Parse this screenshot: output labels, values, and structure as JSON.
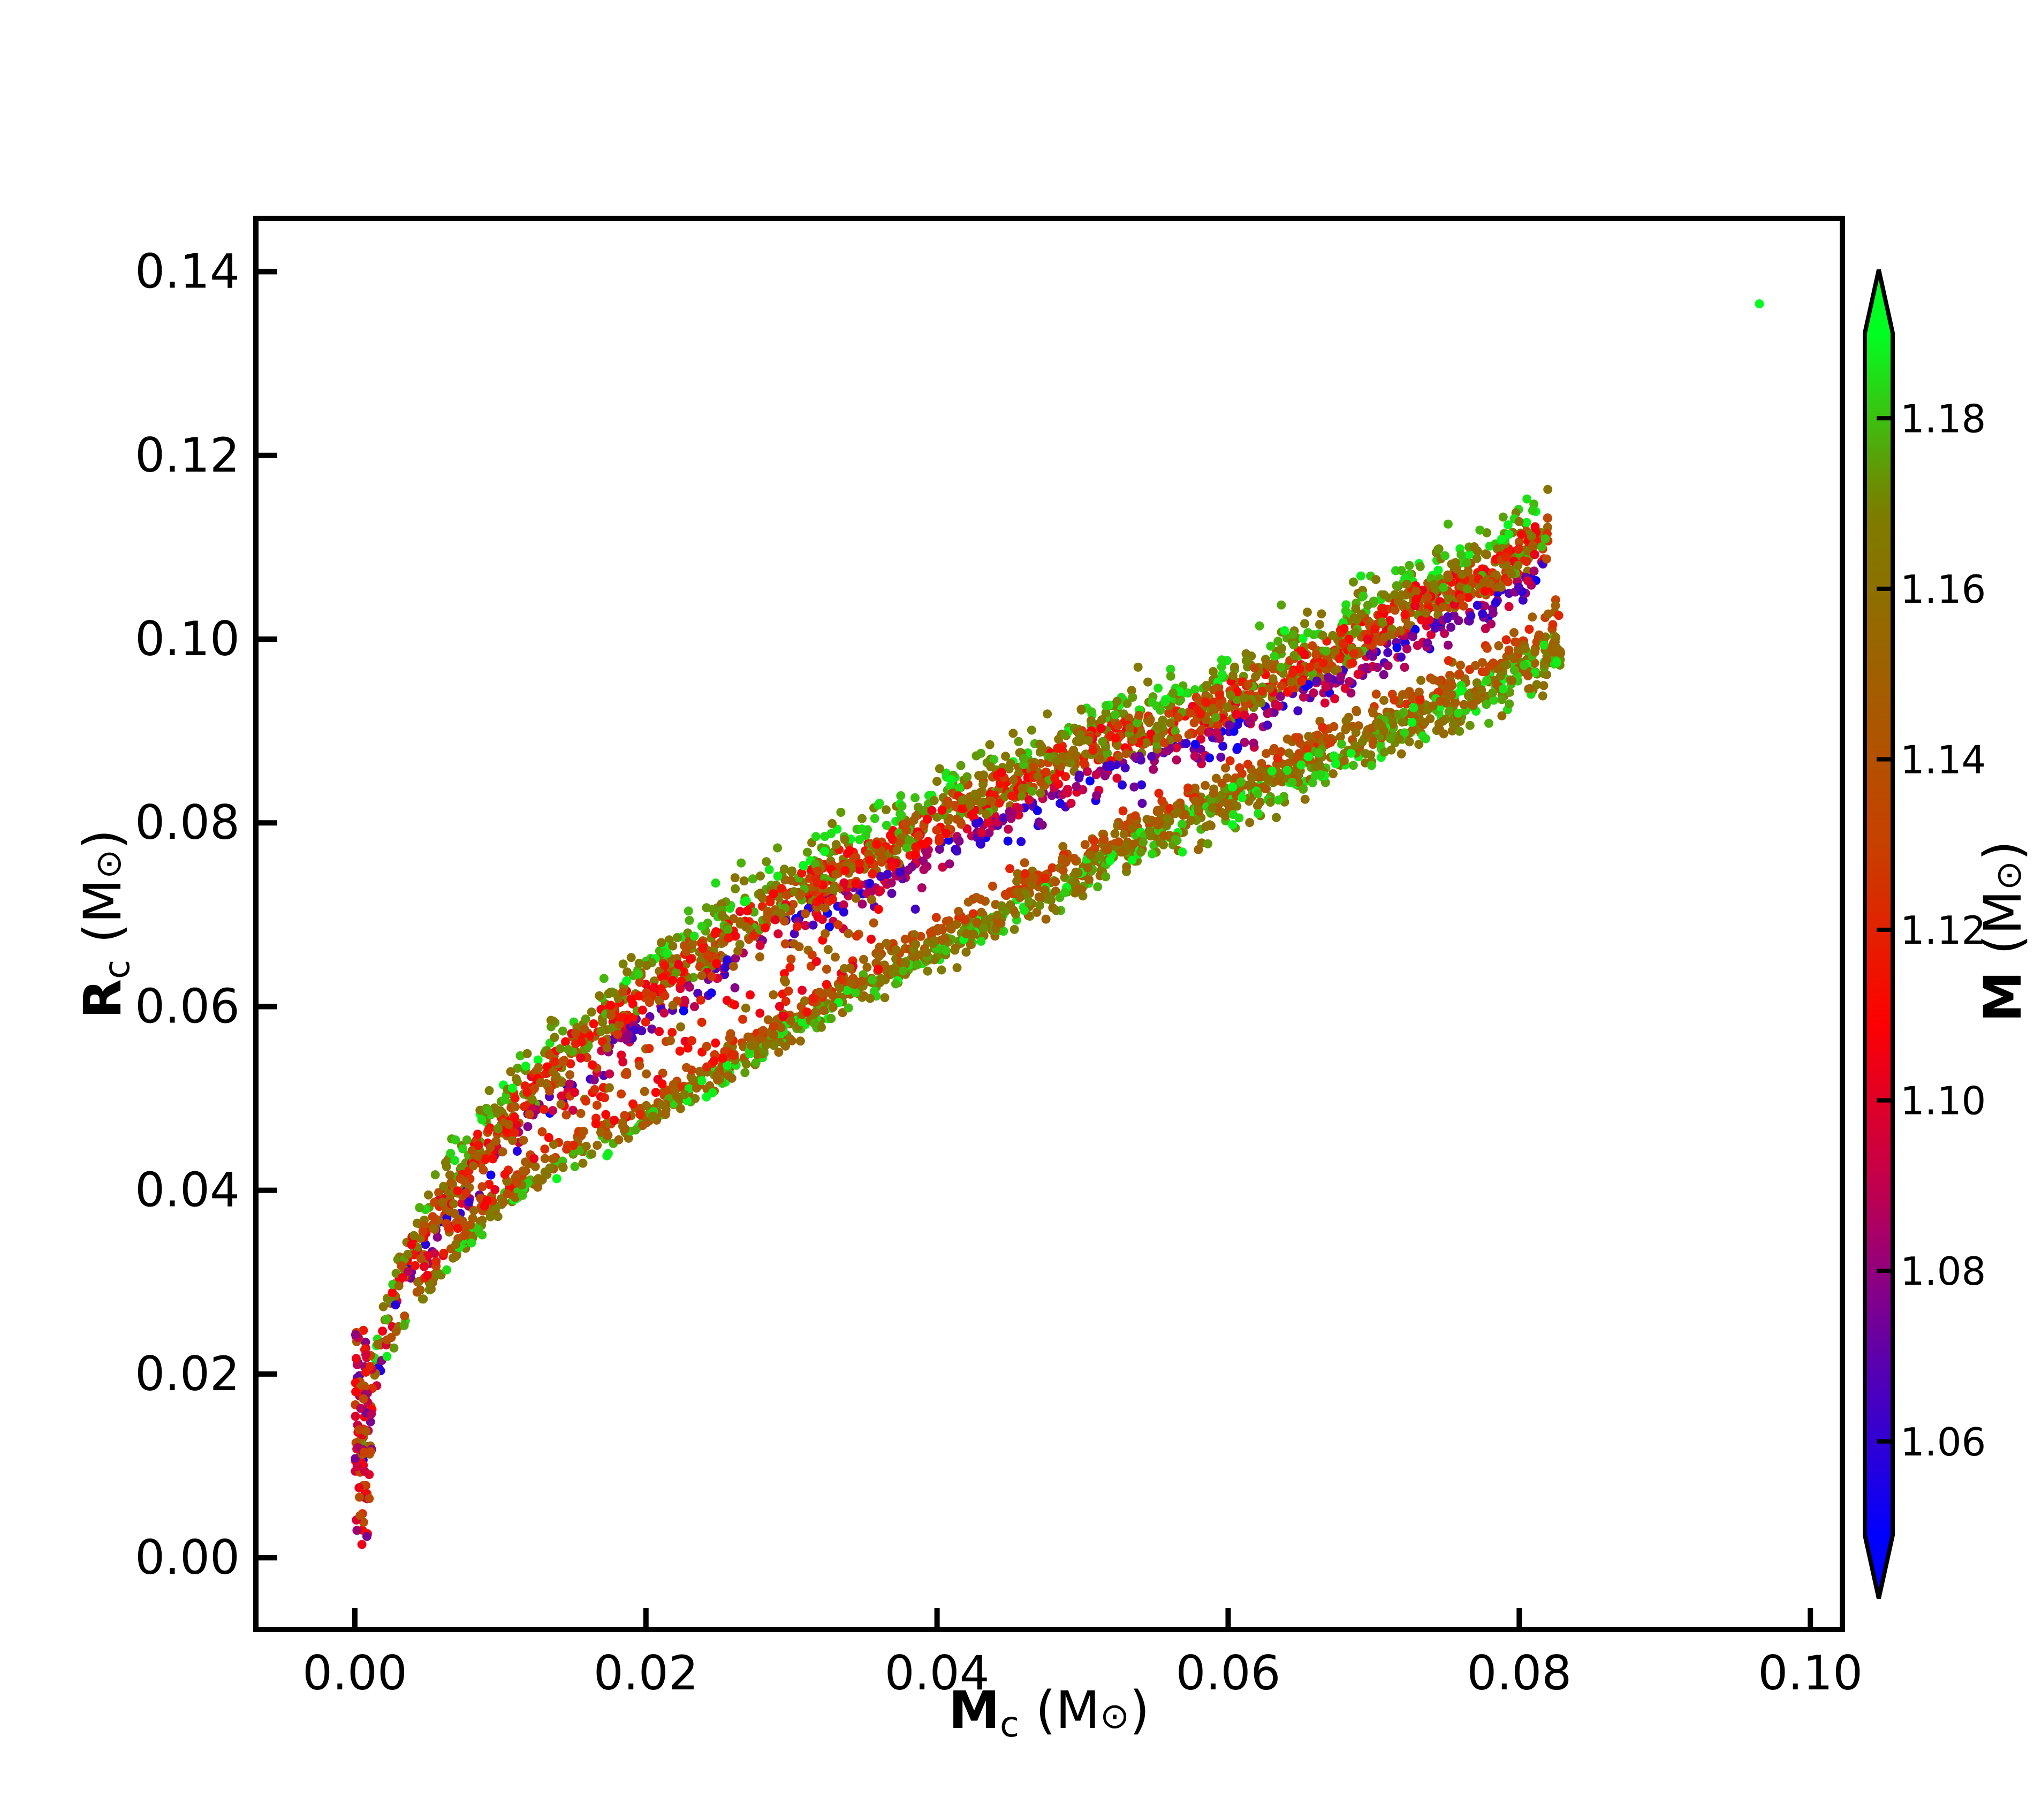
{
  "chart_data": {
    "type": "scatter",
    "title": "",
    "xlabel": {
      "main": "M",
      "sub": "c",
      "unit_open": " (M",
      "unit_sym": "⊙",
      "unit_close": ")"
    },
    "ylabel": {
      "main": "R",
      "sub": "c",
      "unit_open": " (M",
      "unit_sym": "⊙",
      "unit_close": ")"
    },
    "xlim": [
      -0.0068,
      0.1022
    ],
    "ylim": [
      -0.0078,
      0.1458
    ],
    "x_ticks": [
      0.0,
      0.02,
      0.04,
      0.06,
      0.08,
      0.1
    ],
    "x_tick_labels": [
      "0.00",
      "0.02",
      "0.04",
      "0.06",
      "0.08",
      "0.10"
    ],
    "y_ticks": [
      0.0,
      0.02,
      0.04,
      0.06,
      0.08,
      0.1,
      0.12,
      0.14
    ],
    "y_tick_labels": [
      "0.00",
      "0.02",
      "0.04",
      "0.06",
      "0.08",
      "0.10",
      "0.12",
      "0.14"
    ],
    "grid": false,
    "colorbar": {
      "label": {
        "main": "M",
        "unit_open": " (M",
        "unit_sym": "⊙",
        "unit_close": ")"
      },
      "range": [
        1.049,
        1.19
      ],
      "extend": "both",
      "colors": [
        "#0000ff",
        "#5a00b0",
        "#c00050",
        "#ff0000",
        "#c84000",
        "#a06000",
        "#7a7f00",
        "#00ff20"
      ],
      "ticks": [
        1.06,
        1.08,
        1.1,
        1.12,
        1.14,
        1.16,
        1.18
      ],
      "tick_labels": [
        "1.06",
        "1.08",
        "1.10",
        "1.12",
        "1.14",
        "1.16",
        "1.18"
      ]
    },
    "series": [
      {
        "description_of_values": "x = core mass Mc, y = core radius Rc, c = total mass M (colorbar)",
        "upper_band": {
          "x": [
            0.0,
            0.002,
            0.004,
            0.006,
            0.008,
            0.01,
            0.012,
            0.015,
            0.018,
            0.02,
            0.022,
            0.025,
            0.028,
            0.03,
            0.032,
            0.035,
            0.038,
            0.04,
            0.042,
            0.045,
            0.048,
            0.05,
            0.052,
            0.055,
            0.058,
            0.06,
            0.062,
            0.065,
            0.068,
            0.07,
            0.072,
            0.075,
            0.078,
            0.08,
            0.082
          ],
          "y": [
            0.008,
            0.026,
            0.034,
            0.039,
            0.043,
            0.047,
            0.051,
            0.055,
            0.059,
            0.062,
            0.064,
            0.067,
            0.07,
            0.072,
            0.074,
            0.076,
            0.078,
            0.08,
            0.082,
            0.084,
            0.086,
            0.088,
            0.089,
            0.09,
            0.092,
            0.093,
            0.095,
            0.097,
            0.099,
            0.101,
            0.103,
            0.105,
            0.107,
            0.109,
            0.111
          ],
          "spread": 0.005
        },
        "lower_band": {
          "x": [
            0.002,
            0.005,
            0.01,
            0.015,
            0.02,
            0.025,
            0.03,
            0.035,
            0.04,
            0.045,
            0.05,
            0.055,
            0.06,
            0.065,
            0.07,
            0.075,
            0.08,
            0.083
          ],
          "y": [
            0.022,
            0.03,
            0.039,
            0.044,
            0.048,
            0.053,
            0.058,
            0.063,
            0.067,
            0.071,
            0.075,
            0.079,
            0.083,
            0.086,
            0.09,
            0.093,
            0.097,
            0.1
          ],
          "spread": 0.003
        },
        "outlier": {
          "x": 0.0965,
          "y": 0.1365,
          "c": 1.19
        }
      }
    ]
  }
}
